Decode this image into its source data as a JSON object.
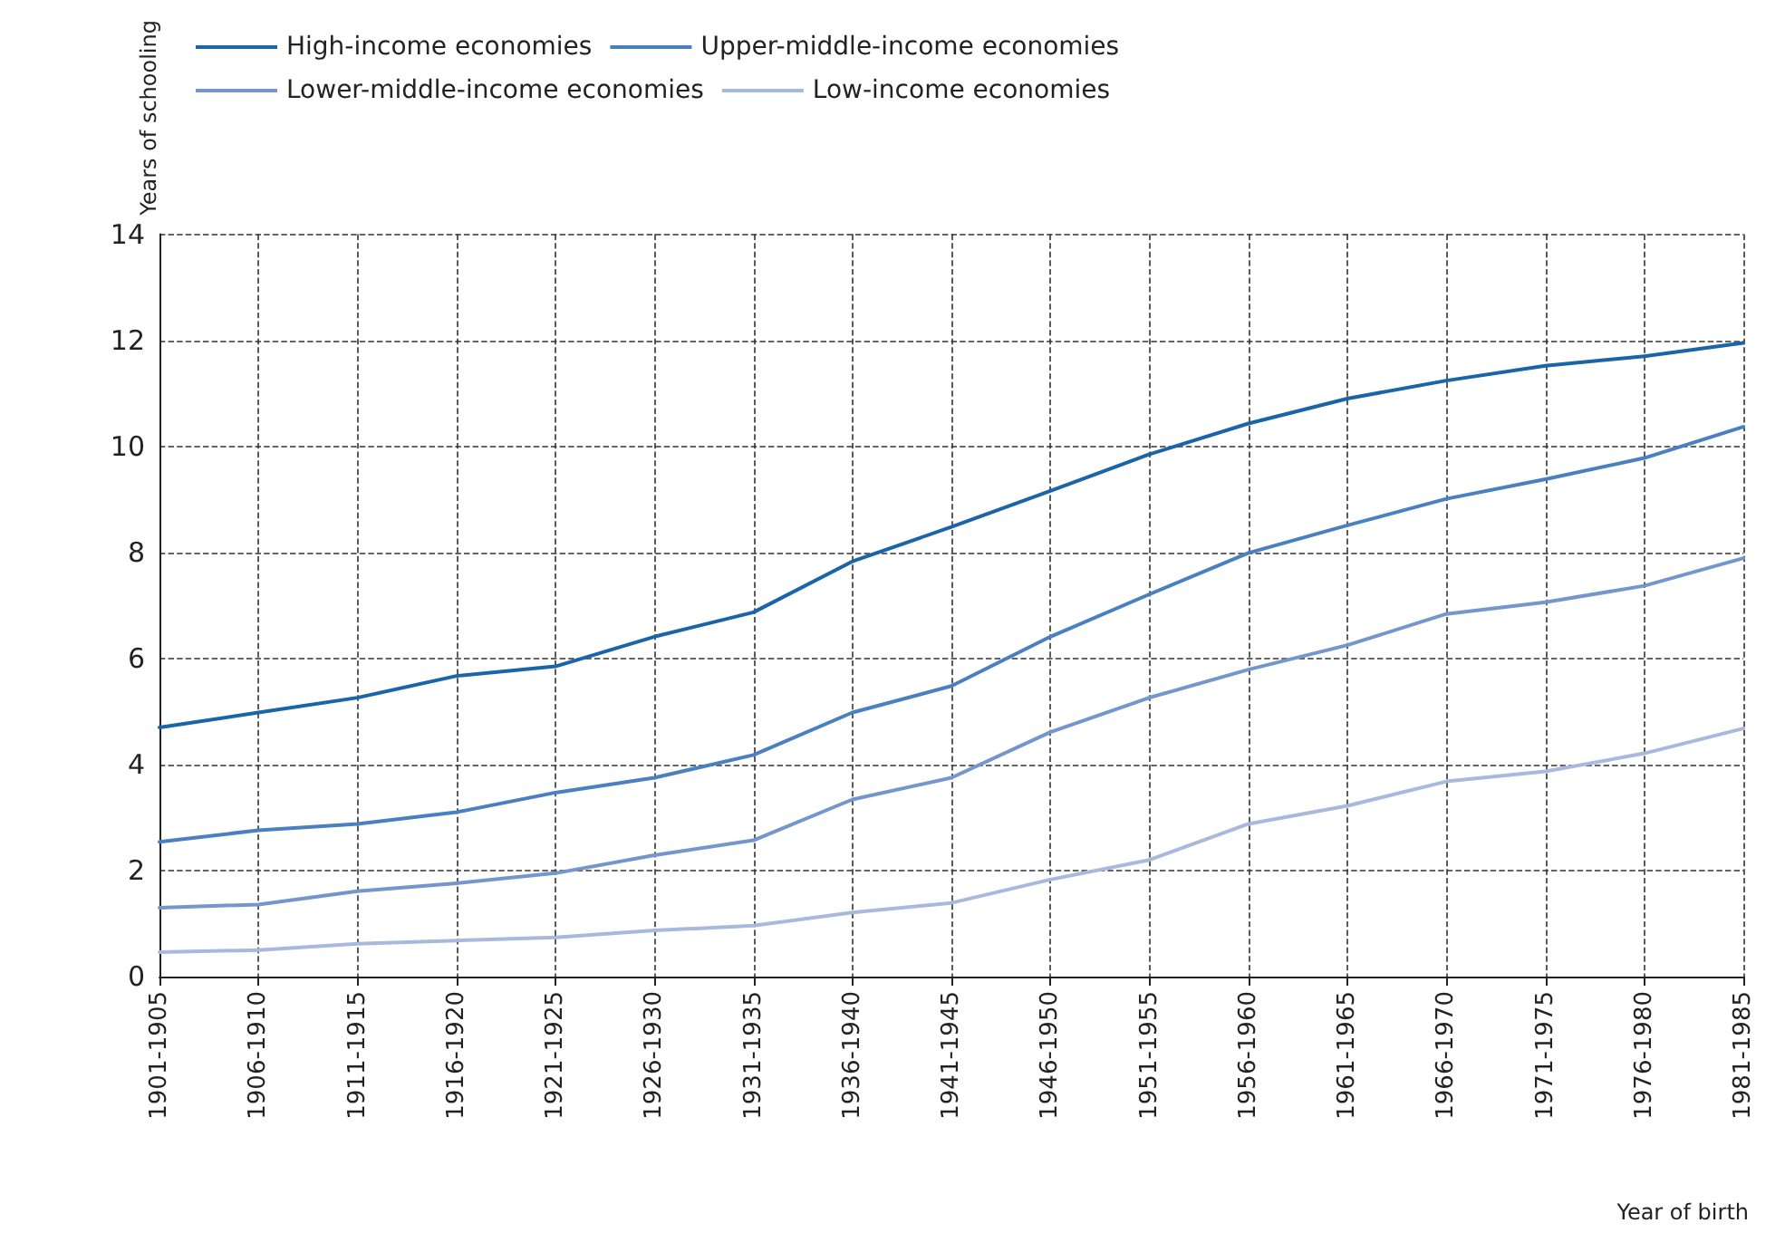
{
  "chart_data": {
    "type": "line",
    "xlabel": "Year of birth",
    "ylabel": "Years of schooling",
    "categories": [
      "1901-1905",
      "1906-1910",
      "1911-1915",
      "1916-1920",
      "1921-1925",
      "1926-1930",
      "1931-1935",
      "1936-1940",
      "1941-1945",
      "1946-1950",
      "1951-1955",
      "1956-1960",
      "1961-1965",
      "1966-1970",
      "1971-1975",
      "1976-1980",
      "1981-1985"
    ],
    "series": [
      {
        "name": "High-income economies",
        "color": "#1a64a8",
        "values": [
          4.7,
          4.98,
          5.26,
          5.67,
          5.85,
          6.41,
          6.87,
          7.83,
          8.48,
          9.16,
          9.85,
          10.43,
          10.9,
          11.24,
          11.52,
          11.7,
          11.95
        ]
      },
      {
        "name": "Upper-middle-income economies",
        "color": "#4a7fc0",
        "values": [
          2.54,
          2.76,
          2.88,
          3.1,
          3.47,
          3.75,
          4.18,
          4.98,
          5.48,
          6.41,
          7.21,
          7.99,
          8.51,
          9.01,
          9.38,
          9.78,
          10.37
        ]
      },
      {
        "name": "Lower-middle-income economies",
        "color": "#7596cc",
        "values": [
          1.3,
          1.36,
          1.61,
          1.76,
          1.95,
          2.29,
          2.57,
          3.34,
          3.75,
          4.61,
          5.26,
          5.79,
          6.25,
          6.84,
          7.06,
          7.37,
          7.89
        ]
      },
      {
        "name": "Low-income economies",
        "color": "#a9b9de",
        "values": [
          0.46,
          0.5,
          0.62,
          0.68,
          0.74,
          0.87,
          0.96,
          1.21,
          1.39,
          1.83,
          2.2,
          2.88,
          3.22,
          3.68,
          3.87,
          4.21,
          4.68
        ]
      }
    ],
    "ylim": [
      0,
      14
    ],
    "yticks": [
      0,
      2,
      4,
      6,
      8,
      10,
      12,
      14
    ],
    "grid": true,
    "legend": "top",
    "line_style": "solid"
  }
}
